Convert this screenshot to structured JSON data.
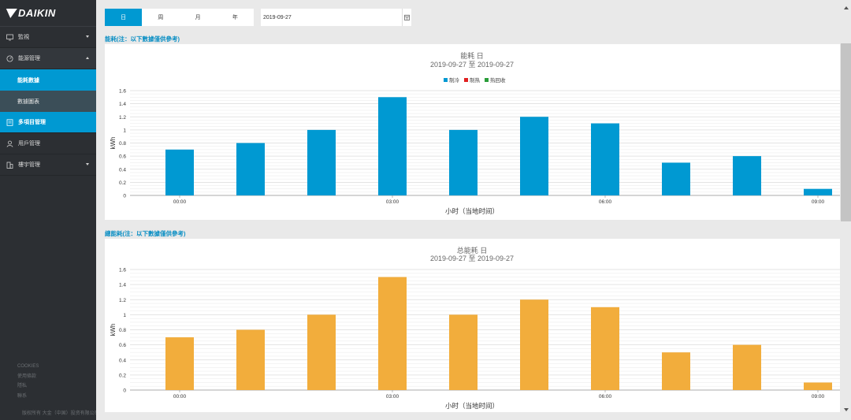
{
  "brand": {
    "logo_text": "DAIKIN"
  },
  "sidebar": {
    "items": [
      {
        "label": "監視",
        "icon": "monitor-icon"
      },
      {
        "label": "能源管理",
        "icon": "energy-icon"
      },
      {
        "label": "能耗數據"
      },
      {
        "label": "數據圖表"
      },
      {
        "label": "多項目管理",
        "icon": "project-icon"
      },
      {
        "label": "用戶管理",
        "icon": "user-icon"
      },
      {
        "label": "樓宇管理",
        "icon": "building-icon"
      }
    ],
    "footer_links": [
      "COOKIES",
      "使用條款",
      "隱私",
      "聯系"
    ],
    "copyright": "版权所有 大金（中国）投资有限公司"
  },
  "toolbar": {
    "tabs": [
      "日",
      "周",
      "月",
      "年"
    ],
    "active_tab": "日",
    "date_value": "2019-09-27"
  },
  "accent_color": "#0099d2",
  "sections": [
    {
      "title": "能耗(注：以下數據僅供參考)"
    },
    {
      "title": "總能耗(注：以下數據僅供參考)"
    }
  ],
  "chart_data": [
    {
      "type": "bar",
      "title": "能耗 日",
      "subtitle": "2019-09-27 至 2019-09-27",
      "legend": [
        "制冷",
        "制热",
        "热回收"
      ],
      "legend_colors": [
        "#0099d2",
        "#e02020",
        "#2a9d3a"
      ],
      "xlabel": "小时（当地时间）",
      "ylabel": "kWh",
      "ylim": [
        0,
        1.6
      ],
      "yticks": [
        "0",
        "0.2",
        "0.4",
        "0.6",
        "0.8",
        "1",
        "1.2",
        "1.4",
        "1.6"
      ],
      "x_tick_labels": [
        "00:00",
        "03:00",
        "06:00",
        "09:00"
      ],
      "series": [
        {
          "values": [
            0.7,
            0.8,
            1.0,
            1.5,
            1.0,
            1.2,
            1.1,
            0.5,
            0.6,
            0.1
          ],
          "color": "#0099d2"
        }
      ]
    },
    {
      "type": "bar",
      "title": "总能耗 日",
      "subtitle": "2019-09-27 至 2019-09-27",
      "xlabel": "小时（当地时间）",
      "ylabel": "kWh",
      "ylim": [
        0,
        1.6
      ],
      "yticks": [
        "0",
        "0.2",
        "0.4",
        "0.6",
        "0.8",
        "1",
        "1.2",
        "1.4",
        "1.6"
      ],
      "x_tick_labels": [
        "00:00",
        "03:00",
        "06:00",
        "09:00"
      ],
      "series": [
        {
          "values": [
            0.7,
            0.8,
            1.0,
            1.5,
            1.0,
            1.2,
            1.1,
            0.5,
            0.6,
            0.1
          ],
          "color": "#f2ad3c"
        }
      ]
    }
  ]
}
